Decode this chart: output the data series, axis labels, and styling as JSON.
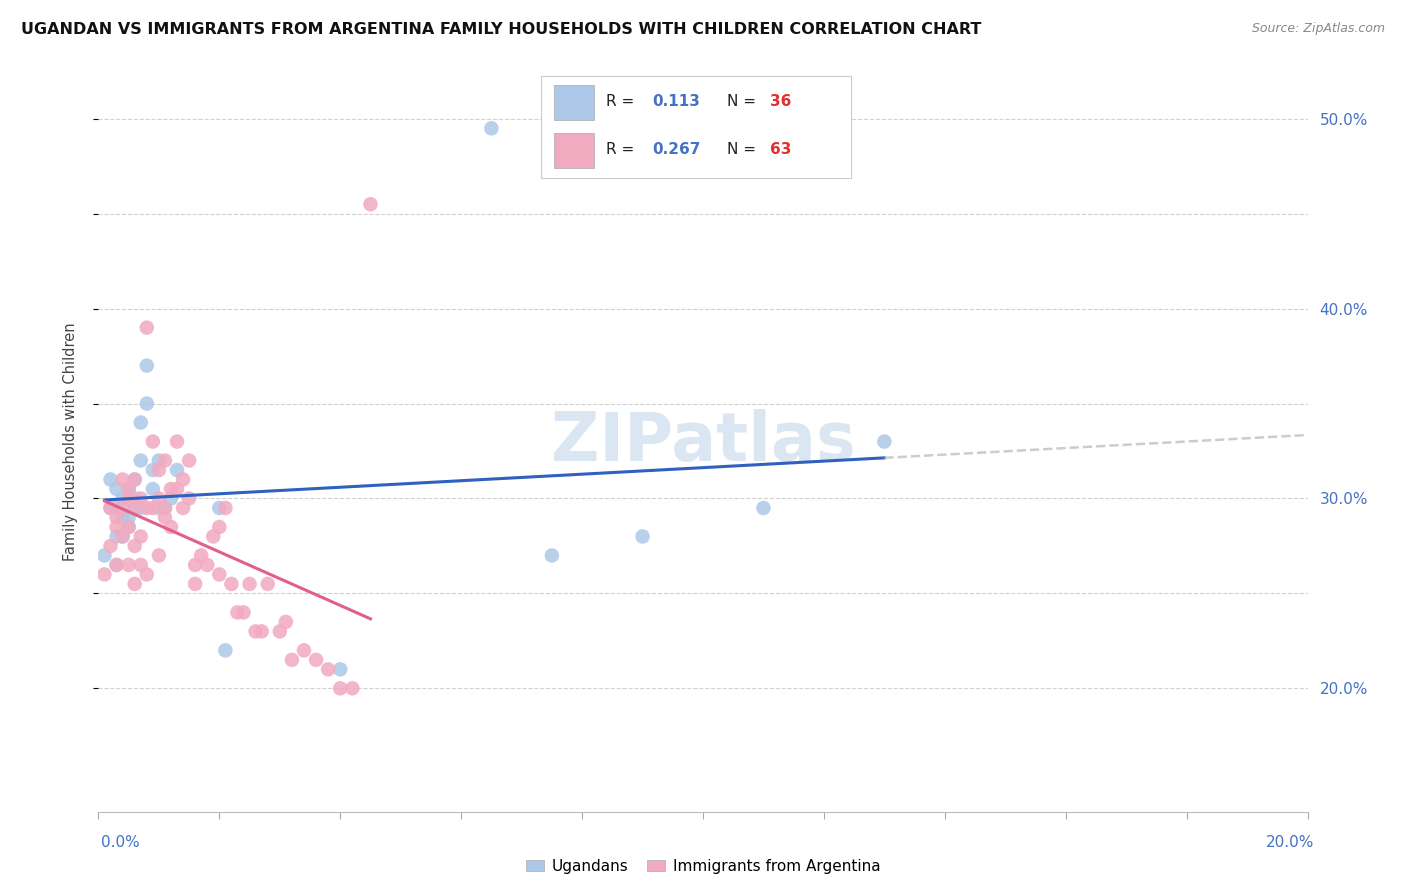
{
  "title": "UGANDAN VS IMMIGRANTS FROM ARGENTINA FAMILY HOUSEHOLDS WITH CHILDREN CORRELATION CHART",
  "source": "Source: ZipAtlas.com",
  "ylabel": "Family Households with Children",
  "yticks": [
    0.2,
    0.25,
    0.3,
    0.35,
    0.4,
    0.45,
    0.5
  ],
  "ytick_labels": [
    "20.0%",
    "",
    "30.0%",
    "",
    "40.0%",
    "",
    "50.0%"
  ],
  "xmin": 0.0,
  "xmax": 0.2,
  "ymin": 0.135,
  "ymax": 0.525,
  "ugandan_color": "#adc8e8",
  "argentina_color": "#f2aac0",
  "ugandan_line_color": "#3060c0",
  "argentina_line_color": "#e06088",
  "dashed_line_color": "#c0c0c0",
  "legend_r_ugandan": "0.113",
  "legend_n_ugandan": "36",
  "legend_r_argentina": "0.267",
  "legend_n_argentina": "63",
  "watermark": "ZIPatlas",
  "ugandan_x": [
    0.001,
    0.002,
    0.002,
    0.003,
    0.003,
    0.003,
    0.003,
    0.004,
    0.004,
    0.004,
    0.005,
    0.005,
    0.005,
    0.006,
    0.006,
    0.006,
    0.007,
    0.007,
    0.007,
    0.008,
    0.008,
    0.009,
    0.009,
    0.01,
    0.01,
    0.011,
    0.012,
    0.013,
    0.02,
    0.021,
    0.04,
    0.065,
    0.075,
    0.09,
    0.11,
    0.13
  ],
  "ugandan_y": [
    0.27,
    0.31,
    0.295,
    0.28,
    0.305,
    0.265,
    0.295,
    0.29,
    0.3,
    0.28,
    0.29,
    0.285,
    0.305,
    0.295,
    0.3,
    0.31,
    0.34,
    0.32,
    0.295,
    0.35,
    0.37,
    0.315,
    0.305,
    0.32,
    0.295,
    0.295,
    0.3,
    0.315,
    0.295,
    0.22,
    0.21,
    0.495,
    0.27,
    0.28,
    0.295,
    0.33
  ],
  "argentina_x": [
    0.001,
    0.002,
    0.002,
    0.003,
    0.003,
    0.003,
    0.004,
    0.004,
    0.004,
    0.005,
    0.005,
    0.005,
    0.005,
    0.006,
    0.006,
    0.006,
    0.006,
    0.007,
    0.007,
    0.007,
    0.008,
    0.008,
    0.008,
    0.009,
    0.009,
    0.01,
    0.01,
    0.01,
    0.011,
    0.011,
    0.011,
    0.012,
    0.012,
    0.013,
    0.013,
    0.014,
    0.014,
    0.015,
    0.015,
    0.016,
    0.016,
    0.017,
    0.018,
    0.019,
    0.02,
    0.02,
    0.021,
    0.022,
    0.023,
    0.024,
    0.025,
    0.026,
    0.027,
    0.028,
    0.03,
    0.031,
    0.032,
    0.034,
    0.036,
    0.038,
    0.04,
    0.042,
    0.045
  ],
  "argentina_y": [
    0.26,
    0.295,
    0.275,
    0.265,
    0.285,
    0.29,
    0.28,
    0.295,
    0.31,
    0.3,
    0.265,
    0.285,
    0.305,
    0.255,
    0.275,
    0.295,
    0.31,
    0.28,
    0.3,
    0.265,
    0.26,
    0.295,
    0.39,
    0.295,
    0.33,
    0.27,
    0.3,
    0.315,
    0.29,
    0.295,
    0.32,
    0.285,
    0.305,
    0.305,
    0.33,
    0.295,
    0.31,
    0.3,
    0.32,
    0.265,
    0.255,
    0.27,
    0.265,
    0.28,
    0.26,
    0.285,
    0.295,
    0.255,
    0.24,
    0.24,
    0.255,
    0.23,
    0.23,
    0.255,
    0.23,
    0.235,
    0.215,
    0.22,
    0.215,
    0.21,
    0.2,
    0.2,
    0.455
  ]
}
